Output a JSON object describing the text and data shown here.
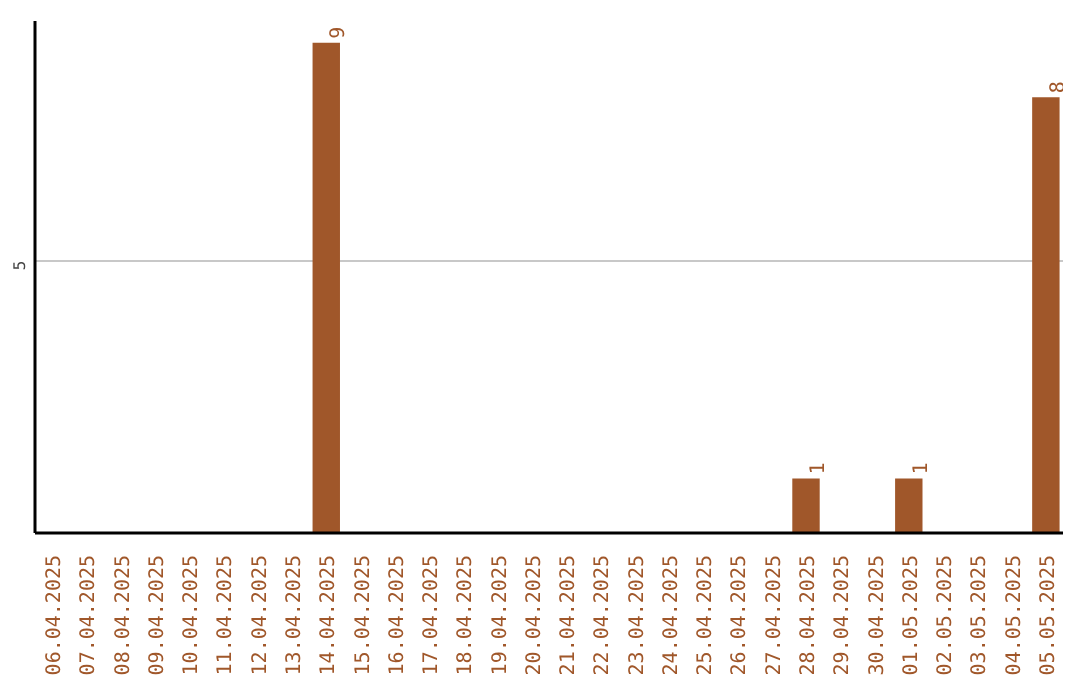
{
  "chart_data": {
    "type": "bar",
    "categories": [
      "06.04.2025",
      "07.04.2025",
      "08.04.2025",
      "09.04.2025",
      "10.04.2025",
      "11.04.2025",
      "12.04.2025",
      "13.04.2025",
      "14.04.2025",
      "15.04.2025",
      "16.04.2025",
      "17.04.2025",
      "18.04.2025",
      "19.04.2025",
      "20.04.2025",
      "21.04.2025",
      "22.04.2025",
      "23.04.2025",
      "24.04.2025",
      "25.04.2025",
      "26.04.2025",
      "27.04.2025",
      "28.04.2025",
      "29.04.2025",
      "30.04.2025",
      "01.05.2025",
      "02.05.2025",
      "03.05.2025",
      "04.05.2025",
      "05.05.2025"
    ],
    "values": [
      0,
      0,
      0,
      0,
      0,
      0,
      0,
      0,
      9,
      0,
      0,
      0,
      0,
      0,
      0,
      0,
      0,
      0,
      0,
      0,
      0,
      0,
      1,
      0,
      0,
      1,
      0,
      0,
      0,
      8
    ],
    "value_labels": [
      null,
      null,
      null,
      null,
      null,
      null,
      null,
      null,
      "9",
      null,
      null,
      null,
      null,
      null,
      null,
      null,
      null,
      null,
      null,
      null,
      null,
      null,
      "1",
      null,
      null,
      "1",
      null,
      null,
      null,
      "8"
    ],
    "color": "#a0572a",
    "ylim": [
      0,
      9.4
    ],
    "yticks": [
      5
    ],
    "grid": "y"
  }
}
